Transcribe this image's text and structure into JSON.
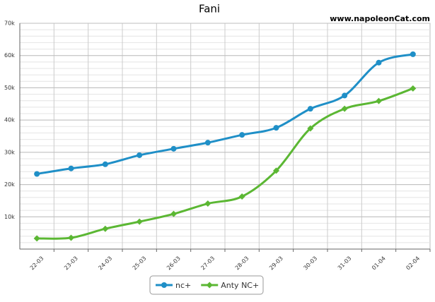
{
  "chart_data": {
    "type": "line",
    "title": "Fani",
    "watermark": "www.napoleonCat.com",
    "categories": [
      "22-03",
      "23-03",
      "24-03",
      "25-03",
      "26-03",
      "27-03",
      "28-03",
      "29-03",
      "30-03",
      "31-03",
      "01-04",
      "02-04"
    ],
    "series": [
      {
        "name": "nc+",
        "color": "#1f8fc7",
        "marker": "circle",
        "values": [
          23300,
          25000,
          26300,
          29100,
          31100,
          33000,
          35400,
          37600,
          43500,
          47600,
          57800,
          60400
        ]
      },
      {
        "name": "Anty NC+",
        "color": "#5bb733",
        "marker": "diamond",
        "values": [
          3300,
          3500,
          6300,
          8500,
          10900,
          14100,
          16300,
          24300,
          37400,
          43500,
          45900,
          49800
        ]
      }
    ],
    "ylim": [
      0,
      70000
    ],
    "yticks": [
      {
        "value": 10000,
        "label": "10k"
      },
      {
        "value": 20000,
        "label": "20k"
      },
      {
        "value": 30000,
        "label": "30k"
      },
      {
        "value": 40000,
        "label": "40k"
      },
      {
        "value": 50000,
        "label": "50k"
      },
      {
        "value": 60000,
        "label": "60k"
      },
      {
        "value": 70000,
        "label": "70k"
      }
    ],
    "grid": true
  }
}
